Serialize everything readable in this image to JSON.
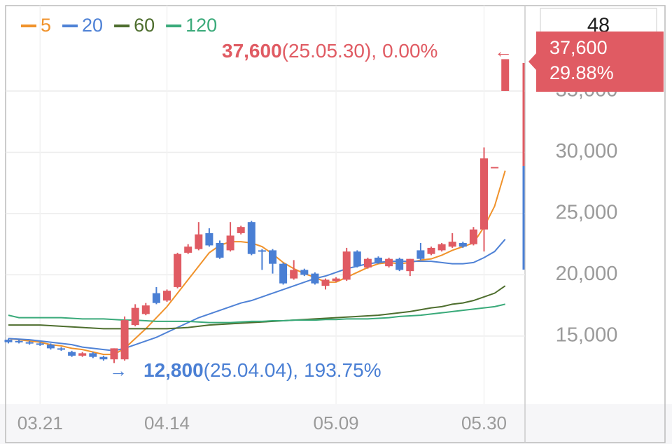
{
  "chart_data": {
    "type": "candlestick",
    "categories": [
      null,
      null,
      null,
      "03.21",
      null,
      null,
      null,
      null,
      null,
      null,
      null,
      null,
      null,
      null,
      null,
      "04.14",
      null,
      null,
      null,
      null,
      null,
      null,
      null,
      null,
      null,
      null,
      null,
      null,
      null,
      null,
      null,
      "05.09",
      null,
      null,
      null,
      null,
      null,
      null,
      null,
      null,
      null,
      null,
      null,
      null,
      null,
      "05.30",
      null,
      null
    ],
    "open": [
      14700,
      14600,
      14500,
      14400,
      14300,
      14000,
      13700,
      13400,
      13600,
      13300,
      13100,
      13100,
      15900,
      16800,
      18500,
      17900,
      19000,
      21800,
      22100,
      23400,
      22600,
      22000,
      23400,
      24300,
      22000,
      22000,
      20900,
      19700,
      20400,
      20100,
      19100,
      19500,
      19600,
      21900,
      20600,
      21400,
      20700,
      21300,
      20300,
      22000,
      21700,
      22000,
      22300,
      22600,
      22500,
      23700,
      28800,
      35000
    ],
    "high": [
      14800,
      14700,
      14600,
      14500,
      14400,
      14100,
      13800,
      13700,
      13700,
      13400,
      14000,
      16600,
      17600,
      17700,
      19000,
      18800,
      21800,
      22500,
      24300,
      23800,
      22800,
      24300,
      24000,
      24400,
      22100,
      22100,
      21000,
      21200,
      20500,
      20200,
      19700,
      19800,
      22200,
      22000,
      21400,
      21500,
      21400,
      21400,
      21300,
      22600,
      22300,
      22600,
      23400,
      22700,
      23900,
      30400,
      28800,
      37600
    ],
    "low": [
      14400,
      14400,
      14300,
      14200,
      13900,
      13800,
      13300,
      13300,
      13200,
      13000,
      12800,
      13000,
      15800,
      16700,
      17600,
      17800,
      18900,
      21700,
      22000,
      22300,
      21300,
      21900,
      23300,
      21600,
      20400,
      20100,
      19200,
      19600,
      19900,
      19200,
      18800,
      19400,
      19500,
      20600,
      20500,
      20900,
      20600,
      20300,
      19900,
      21200,
      21600,
      21900,
      22200,
      22200,
      22400,
      21900,
      28800,
      35000
    ],
    "close": [
      14500,
      14500,
      14400,
      14300,
      14000,
      13900,
      13400,
      13600,
      13300,
      13100,
      14000,
      16300,
      17300,
      17500,
      17700,
      18700,
      21700,
      22300,
      23300,
      22400,
      21400,
      23200,
      23900,
      21700,
      21900,
      20900,
      19300,
      20400,
      20000,
      19300,
      19600,
      19700,
      21900,
      20700,
      21300,
      21000,
      21300,
      20400,
      21300,
      21300,
      22200,
      22500,
      22700,
      22300,
      23700,
      29500,
      28800,
      37600
    ],
    "up_color": "#e05b63",
    "down_color": "#4a7fd4",
    "series": [
      {
        "name": "5",
        "color": "#f0922b",
        "values": [
          14800,
          14700,
          14600,
          14500,
          14300,
          14200,
          14000,
          13900,
          13700,
          13500,
          13500,
          14000,
          14800,
          15600,
          16500,
          17400,
          18500,
          19600,
          20700,
          21800,
          22400,
          22700,
          22700,
          22600,
          22300,
          21700,
          21000,
          20500,
          20100,
          19800,
          19400,
          19400,
          19800,
          20200,
          20600,
          20900,
          21000,
          20900,
          21000,
          21200,
          21300,
          21600,
          22000,
          22300,
          22600,
          23900,
          25600,
          28500
        ]
      },
      {
        "name": "20",
        "color": "#4f82d6",
        "values": [
          14800,
          14750,
          14700,
          14600,
          14500,
          14400,
          14300,
          14100,
          14000,
          13900,
          13800,
          14000,
          14300,
          14600,
          14900,
          15300,
          15700,
          16100,
          16500,
          16800,
          17100,
          17400,
          17700,
          17900,
          18200,
          18500,
          18800,
          19100,
          19400,
          19700,
          19900,
          20200,
          20500,
          20700,
          20900,
          21000,
          21100,
          21100,
          21100,
          21100,
          21100,
          21000,
          20900,
          20900,
          21000,
          21400,
          21900,
          22900
        ]
      },
      {
        "name": "60",
        "color": "#4e6e2e",
        "values": [
          15900,
          15900,
          15900,
          15900,
          15850,
          15800,
          15750,
          15700,
          15650,
          15600,
          15600,
          15600,
          15600,
          15600,
          15600,
          15600,
          15650,
          15700,
          15800,
          15900,
          15950,
          16000,
          16050,
          16100,
          16150,
          16200,
          16250,
          16300,
          16350,
          16400,
          16450,
          16500,
          16550,
          16600,
          16650,
          16700,
          16800,
          16900,
          17000,
          17150,
          17300,
          17400,
          17600,
          17700,
          17900,
          18200,
          18500,
          19100
        ]
      },
      {
        "name": "120",
        "color": "#3aaa7a",
        "values": [
          16700,
          16500,
          16500,
          16500,
          16500,
          16500,
          16450,
          16400,
          16400,
          16400,
          16350,
          16300,
          16300,
          16250,
          16200,
          16200,
          16200,
          16200,
          16150,
          16100,
          16100,
          16100,
          16150,
          16200,
          16200,
          16250,
          16250,
          16300,
          16300,
          16300,
          16350,
          16350,
          16400,
          16400,
          16400,
          16450,
          16500,
          16600,
          16650,
          16700,
          16800,
          16900,
          17000,
          17100,
          17200,
          17300,
          17400,
          17600
        ]
      }
    ],
    "ylim": [
      9450,
      41970
    ],
    "yticks": [
      {
        "value": 15000,
        "label": "15,000"
      },
      {
        "value": 20000,
        "label": "20,000"
      },
      {
        "value": 25000,
        "label": "25,000"
      },
      {
        "value": 30000,
        "label": "30,000"
      },
      {
        "value": 35000,
        "label": "35,000"
      }
    ],
    "grid": true,
    "top_label": "48",
    "max_annotation": {
      "value": 37600,
      "label": "37,600",
      "date": "(25.05.30),",
      "change": {
        "value": 0,
        "label": "0.00%"
      },
      "arrow": "←"
    },
    "min_annotation": {
      "value": 12800,
      "label": "12,800",
      "date": "(25.04.04),",
      "change": {
        "value": 193.75,
        "label": "193.75%"
      },
      "arrow": "→"
    },
    "current_price": {
      "value": 37600,
      "label": "37,600"
    },
    "current_change": {
      "value": 29.88,
      "label": "29.88%"
    }
  }
}
